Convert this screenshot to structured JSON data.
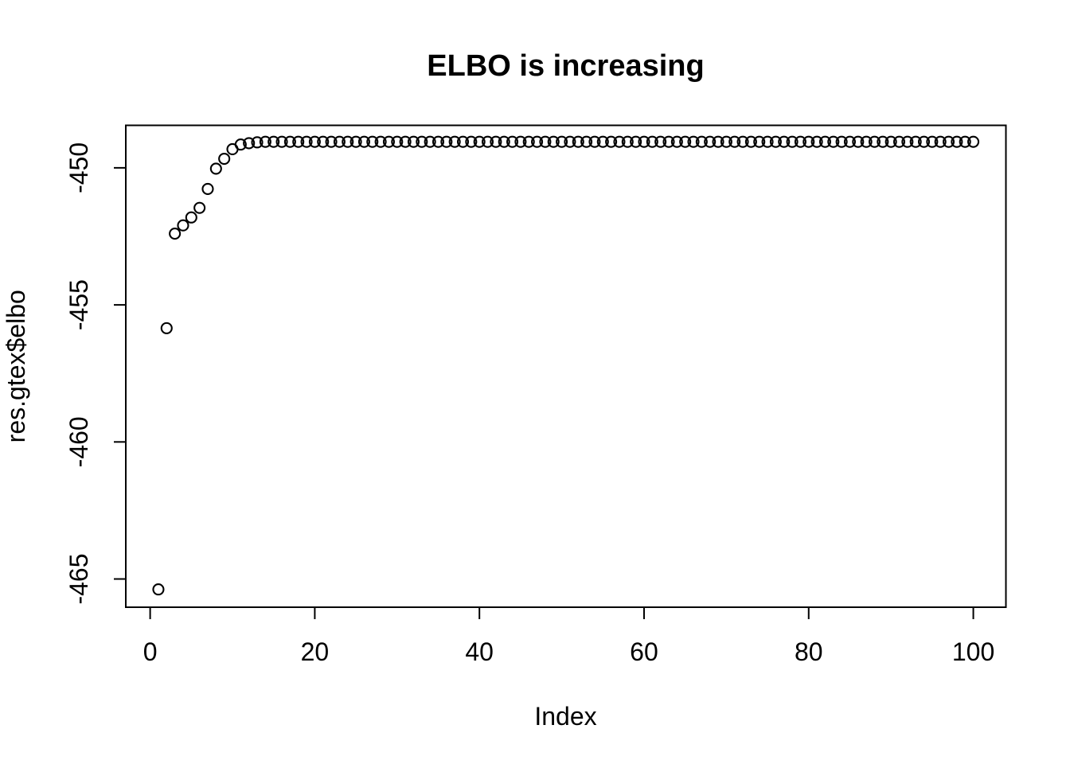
{
  "chart_data": {
    "type": "scatter",
    "title": "ELBO is increasing",
    "xlabel": "Index",
    "ylabel": "res.gtex$elbo",
    "point_style": "open-circle",
    "grid": false,
    "legend": "none",
    "xlim": [
      -2.96,
      103.96
    ],
    "ylim": [
      -466.03,
      -448.45
    ],
    "xticks": {
      "values": [
        0,
        20,
        40,
        60,
        80,
        100
      ],
      "labels": [
        "0",
        "20",
        "40",
        "60",
        "80",
        "100"
      ]
    },
    "yticks": {
      "values": [
        -450,
        -455,
        -460,
        -465
      ],
      "labels": [
        "-450",
        "-455",
        "-460",
        "-465"
      ]
    },
    "colors": {
      "points": "#000000",
      "axis": "#000000",
      "text": "#000000",
      "background": "#ffffff"
    },
    "x": [
      1,
      2,
      3,
      4,
      5,
      6,
      7,
      8,
      9,
      10,
      11,
      12,
      13,
      14,
      15,
      16,
      17,
      18,
      19,
      20,
      21,
      22,
      23,
      24,
      25,
      26,
      27,
      28,
      29,
      30,
      31,
      32,
      33,
      34,
      35,
      36,
      37,
      38,
      39,
      40,
      41,
      42,
      43,
      44,
      45,
      46,
      47,
      48,
      49,
      50,
      51,
      52,
      53,
      54,
      55,
      56,
      57,
      58,
      59,
      60,
      61,
      62,
      63,
      64,
      65,
      66,
      67,
      68,
      69,
      70,
      71,
      72,
      73,
      74,
      75,
      76,
      77,
      78,
      79,
      80,
      81,
      82,
      83,
      84,
      85,
      86,
      87,
      88,
      89,
      90,
      91,
      92,
      93,
      94,
      95,
      96,
      97,
      98,
      99,
      100
    ],
    "y": [
      -465.38,
      -455.85,
      -452.4,
      -452.1,
      -451.81,
      -451.46,
      -450.77,
      -450.03,
      -449.67,
      -449.32,
      -449.15,
      -449.1,
      -449.07,
      -449.05,
      -449.05,
      -449.05,
      -449.05,
      -449.05,
      -449.05,
      -449.05,
      -449.05,
      -449.05,
      -449.05,
      -449.05,
      -449.05,
      -449.05,
      -449.05,
      -449.05,
      -449.05,
      -449.05,
      -449.05,
      -449.05,
      -449.05,
      -449.05,
      -449.05,
      -449.05,
      -449.05,
      -449.05,
      -449.05,
      -449.05,
      -449.05,
      -449.05,
      -449.05,
      -449.05,
      -449.05,
      -449.05,
      -449.05,
      -449.05,
      -449.05,
      -449.05,
      -449.05,
      -449.05,
      -449.05,
      -449.05,
      -449.05,
      -449.05,
      -449.05,
      -449.05,
      -449.05,
      -449.05,
      -449.05,
      -449.05,
      -449.05,
      -449.05,
      -449.05,
      -449.05,
      -449.05,
      -449.05,
      -449.05,
      -449.05,
      -449.05,
      -449.05,
      -449.05,
      -449.05,
      -449.05,
      -449.05,
      -449.05,
      -449.05,
      -449.05,
      -449.05,
      -449.05,
      -449.05,
      -449.05,
      -449.05,
      -449.05,
      -449.05,
      -449.05,
      -449.05,
      -449.05,
      -449.05,
      -449.05,
      -449.05,
      -449.05,
      -449.05,
      -449.05,
      -449.05,
      -449.05,
      -449.05,
      -449.05,
      -449.05
    ]
  }
}
